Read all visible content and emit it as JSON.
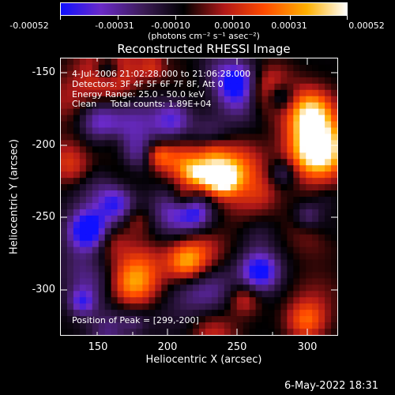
{
  "colorbar": {
    "tick_labels": [
      "-0.00052",
      "-0.00031",
      "-0.00010",
      "0.00010",
      "0.00031",
      "0.00052"
    ],
    "units": "(photons cm⁻² s⁻¹ asec⁻²)",
    "colors": [
      "#1010ff",
      "#6a2ac8",
      "#3b1b55",
      "#000000",
      "#b01818",
      "#ff4a00",
      "#ffb000",
      "#ffffff"
    ]
  },
  "image": {
    "title": "Reconstructed RHESSI Image",
    "annotations": {
      "time": "4-Jul-2006 21:02:28.000 to 21:06:28.000",
      "detectors": "Detectors: 3F 4F 5F 6F 7F 8F, Att 0",
      "energy": "Energy Range: 25.0 - 50.0 keV",
      "clean": "Clean     Total counts: 1.89E+04",
      "peak": "Position of Peak = [299,-200]"
    },
    "x_axis": {
      "label": "Heliocentric X (arcsec)",
      "ticks": [
        "150",
        "200",
        "250",
        "300"
      ],
      "range": [
        122,
        316
      ]
    },
    "y_axis": {
      "label": "Heliocentric Y (arcsec)",
      "ticks": [
        "-150",
        "-200",
        "-250",
        "-300"
      ],
      "range": [
        -138,
        -332
      ]
    }
  },
  "timestamp": "6-May-2022 18:31"
}
